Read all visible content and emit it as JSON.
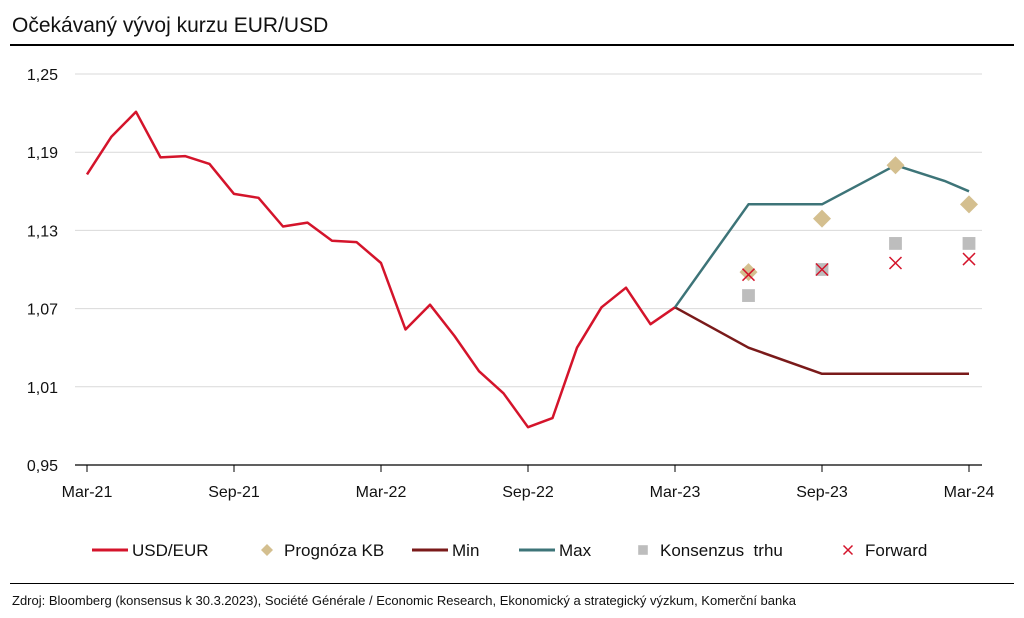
{
  "title": "Očekávaný vývoj kurzu EUR/USD",
  "source": "Zdroj: Bloomberg (konsensus k 30.3.2023), Société Générale / Economic Research, Ekonomický a strategický výzkum, Komerční banka",
  "chart_data": {
    "type": "line",
    "title": "Očekávaný vývoj kurzu EUR/USD",
    "x_unit": "month",
    "x_tick_labels": [
      "Mar-21",
      "Sep-21",
      "Mar-22",
      "Sep-22",
      "Mar-23",
      "Sep-23",
      "Mar-24"
    ],
    "x_ticks": [
      "2021-03",
      "2021-09",
      "2022-03",
      "2022-09",
      "2023-03",
      "2023-09",
      "2024-03"
    ],
    "xlim": [
      "2021-03",
      "2024-03"
    ],
    "ylim": [
      0.95,
      1.25
    ],
    "y_ticks": [
      0.95,
      1.01,
      1.07,
      1.13,
      1.19,
      1.25
    ],
    "y_tick_labels": [
      "0,95",
      "1,01",
      "1,07",
      "1,13",
      "1,19",
      "1,25"
    ],
    "grid": "horizontal",
    "legend_position": "bottom",
    "series": [
      {
        "name": "USD/EUR",
        "kind": "line",
        "color": "#d4142b",
        "points": [
          [
            "2021-03",
            1.173
          ],
          [
            "2021-04",
            1.202
          ],
          [
            "2021-05",
            1.221
          ],
          [
            "2021-06",
            1.186
          ],
          [
            "2021-07",
            1.187
          ],
          [
            "2021-08",
            1.181
          ],
          [
            "2021-09",
            1.158
          ],
          [
            "2021-10",
            1.155
          ],
          [
            "2021-11",
            1.133
          ],
          [
            "2021-12",
            1.136
          ],
          [
            "2022-01",
            1.122
          ],
          [
            "2022-02",
            1.121
          ],
          [
            "2022-03",
            1.105
          ],
          [
            "2022-04",
            1.054
          ],
          [
            "2022-05",
            1.073
          ],
          [
            "2022-06",
            1.049
          ],
          [
            "2022-07",
            1.022
          ],
          [
            "2022-08",
            1.005
          ],
          [
            "2022-09",
            0.979
          ],
          [
            "2022-10",
            0.986
          ],
          [
            "2022-11",
            1.04
          ],
          [
            "2022-12",
            1.071
          ],
          [
            "2023-01",
            1.086
          ],
          [
            "2023-02",
            1.058
          ],
          [
            "2023-03",
            1.071
          ]
        ]
      },
      {
        "name": "Prognóza KB",
        "kind": "marker",
        "marker": "diamond",
        "color": "#d4bf8f",
        "points": [
          [
            "2023-06",
            1.098
          ],
          [
            "2023-09",
            1.139
          ],
          [
            "2023-12",
            1.18
          ],
          [
            "2024-03",
            1.15
          ]
        ]
      },
      {
        "name": "Min",
        "kind": "line",
        "color": "#7a1a1a",
        "points": [
          [
            "2023-03",
            1.071
          ],
          [
            "2023-06",
            1.04
          ],
          [
            "2023-09",
            1.02
          ],
          [
            "2023-12",
            1.02
          ],
          [
            "2024-03",
            1.02
          ]
        ]
      },
      {
        "name": "Max",
        "kind": "line",
        "color": "#3d7478",
        "points": [
          [
            "2023-03",
            1.071
          ],
          [
            "2023-06",
            1.15
          ],
          [
            "2023-09",
            1.15
          ],
          [
            "2023-11",
            1.17
          ],
          [
            "2023-12",
            1.18
          ],
          [
            "2024-02",
            1.168
          ],
          [
            "2024-03",
            1.16
          ]
        ]
      },
      {
        "name": "Konsenzus  trhu",
        "kind": "marker",
        "marker": "square",
        "color": "#bdbdbd",
        "points": [
          [
            "2023-06",
            1.08
          ],
          [
            "2023-09",
            1.1
          ],
          [
            "2023-12",
            1.12
          ],
          [
            "2024-03",
            1.12
          ]
        ]
      },
      {
        "name": "Forward",
        "kind": "marker",
        "marker": "x",
        "color": "#d4142b",
        "points": [
          [
            "2023-06",
            1.096
          ],
          [
            "2023-09",
            1.1
          ],
          [
            "2023-12",
            1.105
          ],
          [
            "2024-03",
            1.108
          ]
        ]
      }
    ]
  }
}
